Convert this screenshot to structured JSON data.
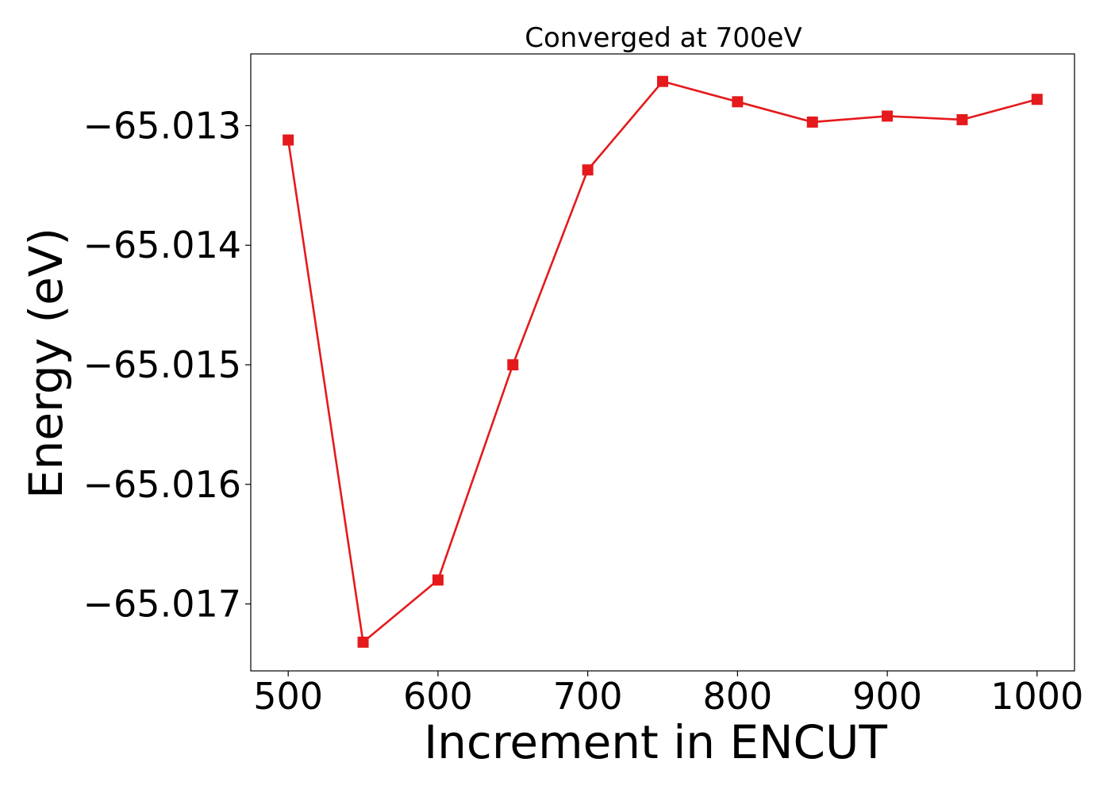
{
  "chart_data": {
    "type": "line",
    "title": "Converged at 700eV",
    "xlabel": "Increment in ENCUT",
    "ylabel": "Energy (eV)",
    "x": [
      500,
      550,
      600,
      650,
      700,
      750,
      800,
      850,
      900,
      950,
      1000
    ],
    "series": [
      {
        "values": [
          -65.01312,
          -65.01732,
          -65.0168,
          -65.015,
          -65.01337,
          -65.01263,
          -65.0128,
          -65.01297,
          -65.01292,
          -65.01295,
          -65.01278
        ],
        "color": "#e41a1c",
        "marker": "square"
      }
    ],
    "xticks": [
      500,
      600,
      700,
      800,
      900,
      1000
    ],
    "xtick_labels": [
      "500",
      "600",
      "700",
      "800",
      "900",
      "1000"
    ],
    "yticks": [
      -65.013,
      -65.014,
      -65.015,
      -65.016,
      -65.017
    ],
    "ytick_labels": [
      "−65.013",
      "−65.014",
      "−65.015",
      "−65.016",
      "−65.017"
    ],
    "xlim": [
      475,
      1025
    ],
    "ylim": [
      -65.01756,
      -65.0124
    ],
    "grid": false,
    "legend": "none"
  }
}
